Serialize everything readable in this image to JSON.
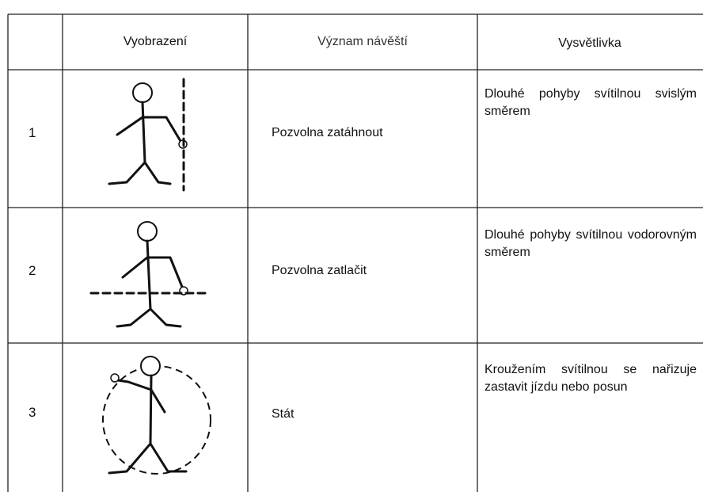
{
  "table": {
    "headers": [
      "Vyobrazení",
      "Význam návěští",
      "Vysvětlivka"
    ],
    "rows": [
      [
        "1",
        "Pozvolna zatáhnout",
        "Dlouhé pohyby svítilnou svislým směrem"
      ],
      [
        "2",
        "Pozvolna zatlačit",
        "Dlouhé pohyby svítilnou vodorovným směrem"
      ],
      [
        "3",
        "Stát",
        "Kroužením svítilnou se nařizuje zastavit jízdu nebo posun"
      ]
    ]
  }
}
